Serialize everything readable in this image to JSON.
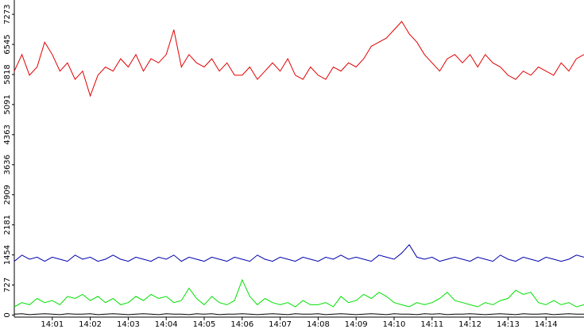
{
  "chart_data": {
    "type": "line",
    "x": [
      0,
      0.2,
      0.4,
      0.6,
      0.8,
      1,
      1.2,
      1.4,
      1.6,
      1.8,
      2,
      2.2,
      2.4,
      2.6,
      2.8,
      3,
      3.2,
      3.4,
      3.6,
      3.8,
      4,
      4.2,
      4.4,
      4.6,
      4.8,
      5,
      5.2,
      5.4,
      5.6,
      5.8,
      6,
      6.2,
      6.4,
      6.6,
      6.8,
      7,
      7.2,
      7.4,
      7.6,
      7.8,
      8,
      8.2,
      8.4,
      8.6,
      8.8,
      9,
      9.2,
      9.4,
      9.6,
      9.8,
      10,
      10.2,
      10.4,
      10.6,
      10.8,
      11,
      11.2,
      11.4,
      11.6,
      11.8,
      12,
      12.2,
      12.4,
      12.6,
      12.8,
      13,
      13.2,
      13.4,
      13.6,
      13.8,
      14,
      14.2,
      14.4,
      14.6,
      14.8,
      15
    ],
    "series": [
      {
        "color": "#e00000",
        "values": [
          5900,
          6300,
          5800,
          6000,
          6600,
          6300,
          5900,
          6100,
          5700,
          5900,
          5300,
          5800,
          6000,
          5900,
          6200,
          6000,
          6300,
          5900,
          6200,
          6100,
          6300,
          6900,
          6000,
          6300,
          6100,
          6000,
          6200,
          5900,
          6100,
          5800,
          5800,
          6000,
          5700,
          5900,
          6100,
          5900,
          6200,
          5800,
          5700,
          6000,
          5800,
          5700,
          6000,
          5900,
          6100,
          6000,
          6200,
          6500,
          6600,
          6700,
          6900,
          7100,
          6800,
          6600,
          6300,
          6100,
          5900,
          6200,
          6300,
          6100,
          6300,
          6000,
          6300,
          6100,
          6000,
          5800,
          5700,
          5900,
          5800,
          6000,
          5900,
          5800,
          6100,
          5900,
          6200,
          6300
        ]
      },
      {
        "color": "#0000b0",
        "values": [
          1300,
          1450,
          1350,
          1400,
          1300,
          1400,
          1350,
          1300,
          1450,
          1350,
          1400,
          1300,
          1350,
          1450,
          1350,
          1300,
          1400,
          1350,
          1300,
          1400,
          1350,
          1450,
          1300,
          1400,
          1350,
          1300,
          1400,
          1350,
          1300,
          1400,
          1350,
          1300,
          1450,
          1350,
          1300,
          1400,
          1350,
          1300,
          1400,
          1350,
          1300,
          1400,
          1350,
          1450,
          1350,
          1400,
          1350,
          1300,
          1450,
          1400,
          1350,
          1500,
          1700,
          1400,
          1350,
          1400,
          1300,
          1350,
          1400,
          1350,
          1300,
          1400,
          1350,
          1300,
          1450,
          1350,
          1300,
          1400,
          1350,
          1300,
          1400,
          1350,
          1300,
          1350,
          1450,
          1400
        ]
      },
      {
        "color": "#00e000",
        "values": [
          200,
          300,
          250,
          400,
          300,
          350,
          250,
          450,
          400,
          500,
          350,
          450,
          300,
          400,
          250,
          300,
          450,
          350,
          500,
          400,
          450,
          300,
          350,
          650,
          400,
          250,
          450,
          300,
          250,
          350,
          850,
          450,
          250,
          400,
          300,
          250,
          300,
          200,
          350,
          250,
          250,
          300,
          200,
          450,
          300,
          350,
          500,
          400,
          550,
          450,
          300,
          250,
          200,
          300,
          250,
          300,
          400,
          550,
          350,
          300,
          250,
          200,
          300,
          250,
          350,
          400,
          600,
          500,
          550,
          300,
          250,
          350,
          250,
          300,
          200,
          250
        ]
      },
      {
        "color": "#000000",
        "values": [
          20,
          30,
          10,
          20,
          30,
          20,
          10,
          30,
          20,
          20,
          30,
          10,
          20,
          30,
          20,
          10,
          20,
          30,
          20,
          10,
          30,
          20,
          20,
          10,
          30,
          20,
          30,
          10,
          20,
          20,
          30,
          20,
          10,
          20,
          30,
          20,
          10,
          30,
          20,
          20,
          30,
          10,
          20,
          30,
          20,
          10,
          20,
          30,
          20,
          10,
          30,
          20,
          20,
          10,
          30,
          20,
          30,
          10,
          20,
          20,
          30,
          20,
          10,
          20,
          30,
          20,
          10,
          30,
          20,
          20,
          30,
          10,
          20,
          30,
          20,
          20
        ]
      }
    ],
    "xlim": [
      0,
      15
    ],
    "ylim": [
      -50,
      7620
    ],
    "yticks": [
      0,
      727,
      1454,
      2181,
      2909,
      3636,
      4363,
      5091,
      5818,
      6545,
      7273
    ],
    "xticks": [
      {
        "value": 1,
        "label": "14:01"
      },
      {
        "value": 2,
        "label": "14:02"
      },
      {
        "value": 3,
        "label": "14:03"
      },
      {
        "value": 4,
        "label": "14:04"
      },
      {
        "value": 5,
        "label": "14:05"
      },
      {
        "value": 6,
        "label": "14:06"
      },
      {
        "value": 7,
        "label": "14:07"
      },
      {
        "value": 8,
        "label": "14:08"
      },
      {
        "value": 9,
        "label": "14:09"
      },
      {
        "value": 10,
        "label": "14:10"
      },
      {
        "value": 11,
        "label": "14:11"
      },
      {
        "value": 12,
        "label": "14:12"
      },
      {
        "value": 13,
        "label": "14:13"
      },
      {
        "value": 14,
        "label": "14:14"
      }
    ]
  }
}
